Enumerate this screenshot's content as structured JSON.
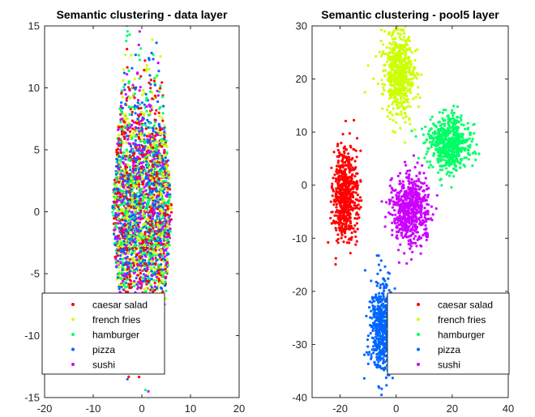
{
  "chart_data": [
    {
      "type": "scatter",
      "title": "Semantic clustering - data layer",
      "xlabel": "",
      "ylabel": "",
      "xlim": [
        -20,
        20
      ],
      "ylim": [
        -15,
        15
      ],
      "xticks": [
        -20,
        -10,
        0,
        10,
        20
      ],
      "yticks": [
        -15,
        -10,
        -5,
        0,
        5,
        10,
        15
      ],
      "xtick_labels": [
        "-20",
        "-10",
        "0",
        "10",
        "20"
      ],
      "ytick_labels": [
        "-15",
        "-10",
        "-5",
        "0",
        "5",
        "10",
        "15"
      ],
      "grid": false,
      "legend_position": "bottom-left",
      "series": [
        {
          "name": "caesar salad",
          "color": "#ff0000",
          "count": 600,
          "center": [
            0,
            0
          ],
          "spread": [
            6.5,
            6.8
          ]
        },
        {
          "name": "french fries",
          "color": "#ccff00",
          "count": 600,
          "center": [
            0,
            0
          ],
          "spread": [
            6.5,
            6.8
          ]
        },
        {
          "name": "hamburger",
          "color": "#00ff66",
          "count": 600,
          "center": [
            0,
            0
          ],
          "spread": [
            6.5,
            6.8
          ]
        },
        {
          "name": "pizza",
          "color": "#0066ff",
          "count": 600,
          "center": [
            0,
            0
          ],
          "spread": [
            6.5,
            6.8
          ]
        },
        {
          "name": "sushi",
          "color": "#cc00ff",
          "count": 600,
          "center": [
            0,
            0
          ],
          "spread": [
            6.5,
            6.8
          ]
        }
      ]
    },
    {
      "type": "scatter",
      "title": "Semantic clustering - pool5 layer",
      "xlabel": "",
      "ylabel": "",
      "xlim": [
        -30,
        40
      ],
      "ylim": [
        -40,
        30
      ],
      "xticks": [
        -20,
        0,
        20,
        40
      ],
      "yticks": [
        -40,
        -30,
        -20,
        -10,
        0,
        10,
        20,
        30
      ],
      "xtick_labels": [
        "-20",
        "0",
        "20",
        "40"
      ],
      "ytick_labels": [
        "-40",
        "-30",
        "-20",
        "-10",
        "0",
        "10",
        "20",
        "30"
      ],
      "grid": false,
      "legend_position": "bottom-right",
      "series": [
        {
          "name": "caesar salad",
          "color": "#ff0000",
          "count": 600,
          "center": [
            -18,
            -2
          ],
          "spread": [
            4,
            8
          ]
        },
        {
          "name": "french fries",
          "color": "#ccff00",
          "count": 600,
          "center": [
            1,
            21
          ],
          "spread": [
            5,
            7
          ]
        },
        {
          "name": "hamburger",
          "color": "#00ff66",
          "count": 600,
          "center": [
            19,
            8
          ],
          "spread": [
            7,
            5
          ]
        },
        {
          "name": "pizza",
          "color": "#0066ff",
          "count": 600,
          "center": [
            -5,
            -27
          ],
          "spread": [
            4,
            8
          ]
        },
        {
          "name": "sushi",
          "color": "#cc00ff",
          "count": 600,
          "center": [
            5,
            -5
          ],
          "spread": [
            6,
            6
          ]
        }
      ]
    }
  ]
}
